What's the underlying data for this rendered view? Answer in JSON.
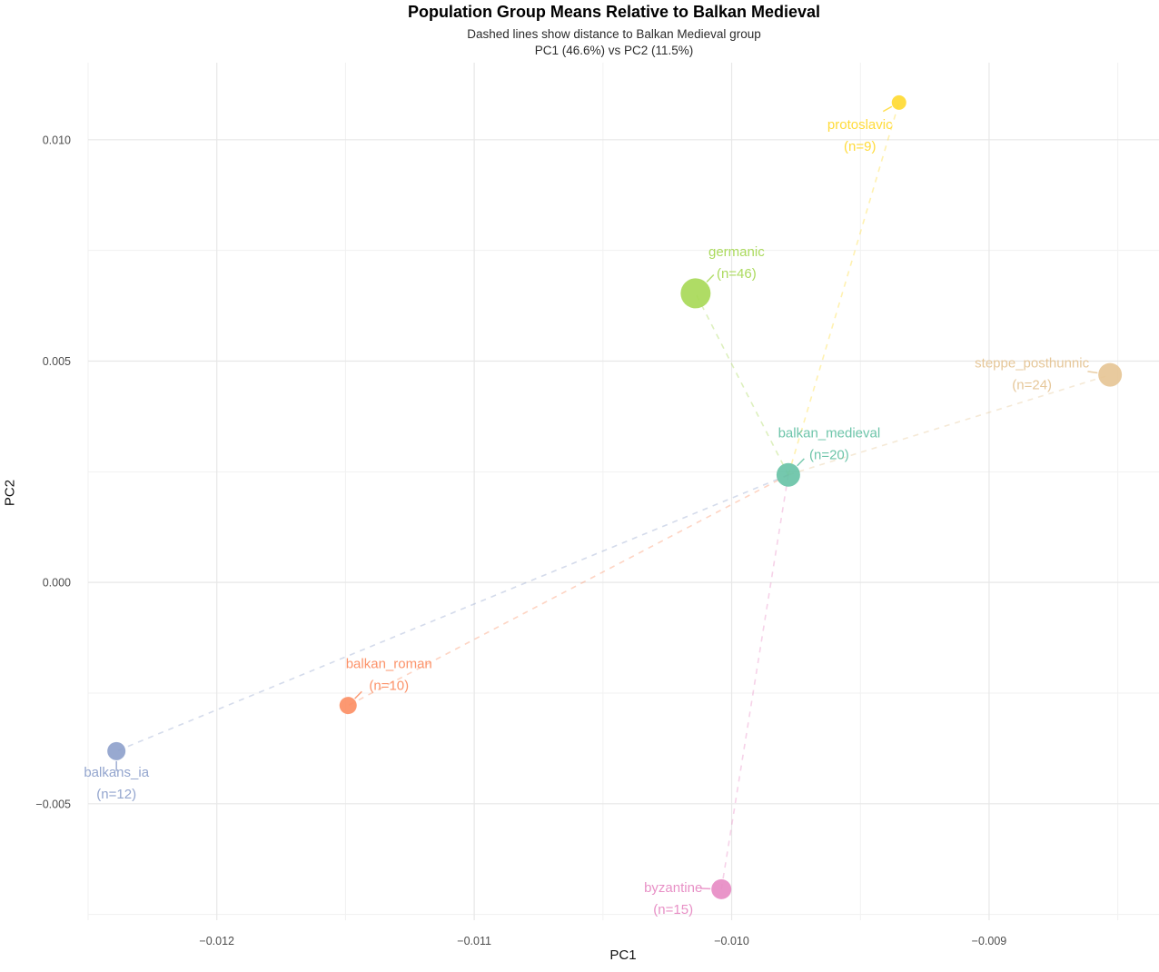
{
  "header": {
    "title": "Population Group Means Relative to Balkan Medieval",
    "subtitle_line1": "Dashed lines show distance to Balkan Medieval group",
    "subtitle_line2": "PC1 (46.6%) vs PC2 (11.5%)"
  },
  "chart_data": {
    "type": "scatter",
    "title": "Population Group Means Relative to Balkan Medieval",
    "subtitle": "Dashed lines show distance to Balkan Medieval group / PC1 (46.6%) vs PC2 (11.5%)",
    "xlabel": "PC1",
    "ylabel": "PC2",
    "xlim": [
      -0.0125,
      -0.00834
    ],
    "ylim": [
      -0.00763,
      0.01174
    ],
    "x_ticks": [
      -0.012,
      -0.011,
      -0.01,
      -0.009
    ],
    "x_tick_labels": [
      "−0.012",
      "−0.011",
      "−0.010",
      "−0.009"
    ],
    "y_ticks": [
      0.01,
      0.005,
      0.0,
      -0.005
    ],
    "y_tick_labels": [
      "0.010",
      "0.005",
      "0.000",
      "−0.005"
    ],
    "x_minor_ticks": [
      -0.0125,
      -0.0115,
      -0.0105,
      -0.0095,
      -0.0085
    ],
    "y_minor_ticks": [
      0.0075,
      0.0025,
      -0.0025,
      -0.0075
    ],
    "grid": true,
    "legend": "none",
    "reference_group": "balkan_medieval",
    "series": [
      {
        "name": "balkan_medieval",
        "label": "balkan_medieval",
        "count_label": "(n=20)",
        "n": 20,
        "x": -0.00978,
        "y": 0.00243,
        "color": "#66C2A5",
        "radius": 13,
        "label_dx": 45,
        "label_dy": -46
      },
      {
        "name": "balkan_roman",
        "label": "balkan_roman",
        "count_label": "(n=10)",
        "n": 10,
        "x": -0.01149,
        "y": -0.00278,
        "color": "#FC8D62",
        "radius": 9.5,
        "label_dx": 45,
        "label_dy": -46
      },
      {
        "name": "balkans_ia",
        "label": "balkans_ia",
        "count_label": "(n=12)",
        "n": 12,
        "x": -0.01239,
        "y": -0.00381,
        "color": "#8DA0CB",
        "radius": 10,
        "label_dx": 0,
        "label_dy": 23
      },
      {
        "name": "byzantine",
        "label": "byzantine",
        "count_label": "(n=15)",
        "n": 15,
        "x": -0.01004,
        "y": -0.00693,
        "color": "#E78AC3",
        "radius": 11,
        "label_dx": -53,
        "label_dy": -2
      },
      {
        "name": "germanic",
        "label": "germanic",
        "count_label": "(n=46)",
        "n": 46,
        "x": -0.01014,
        "y": 0.00653,
        "color": "#A6D854",
        "radius": 16.5,
        "label_dx": 45,
        "label_dy": -46
      },
      {
        "name": "protoslavic",
        "label": "protoslavic",
        "count_label": "(n=9)",
        "n": 9,
        "x": -0.00935,
        "y": 0.01084,
        "color": "#FFD92F",
        "radius": 8,
        "label_dx": -43,
        "label_dy": 24
      },
      {
        "name": "steppe_posthunnic",
        "label": "steppe_posthunnic",
        "count_label": "(n=24)",
        "n": 24,
        "x": -0.00853,
        "y": 0.00469,
        "color": "#E5C494",
        "radius": 13,
        "label_dx": -86,
        "label_dy": -13
      }
    ]
  },
  "style_colors": {
    "background": "#FFFFFF",
    "grid_major": "#E7E7E7",
    "grid_minor": "#F1F1F1",
    "tick_label": "#4D4D4D",
    "title": "#000000"
  }
}
